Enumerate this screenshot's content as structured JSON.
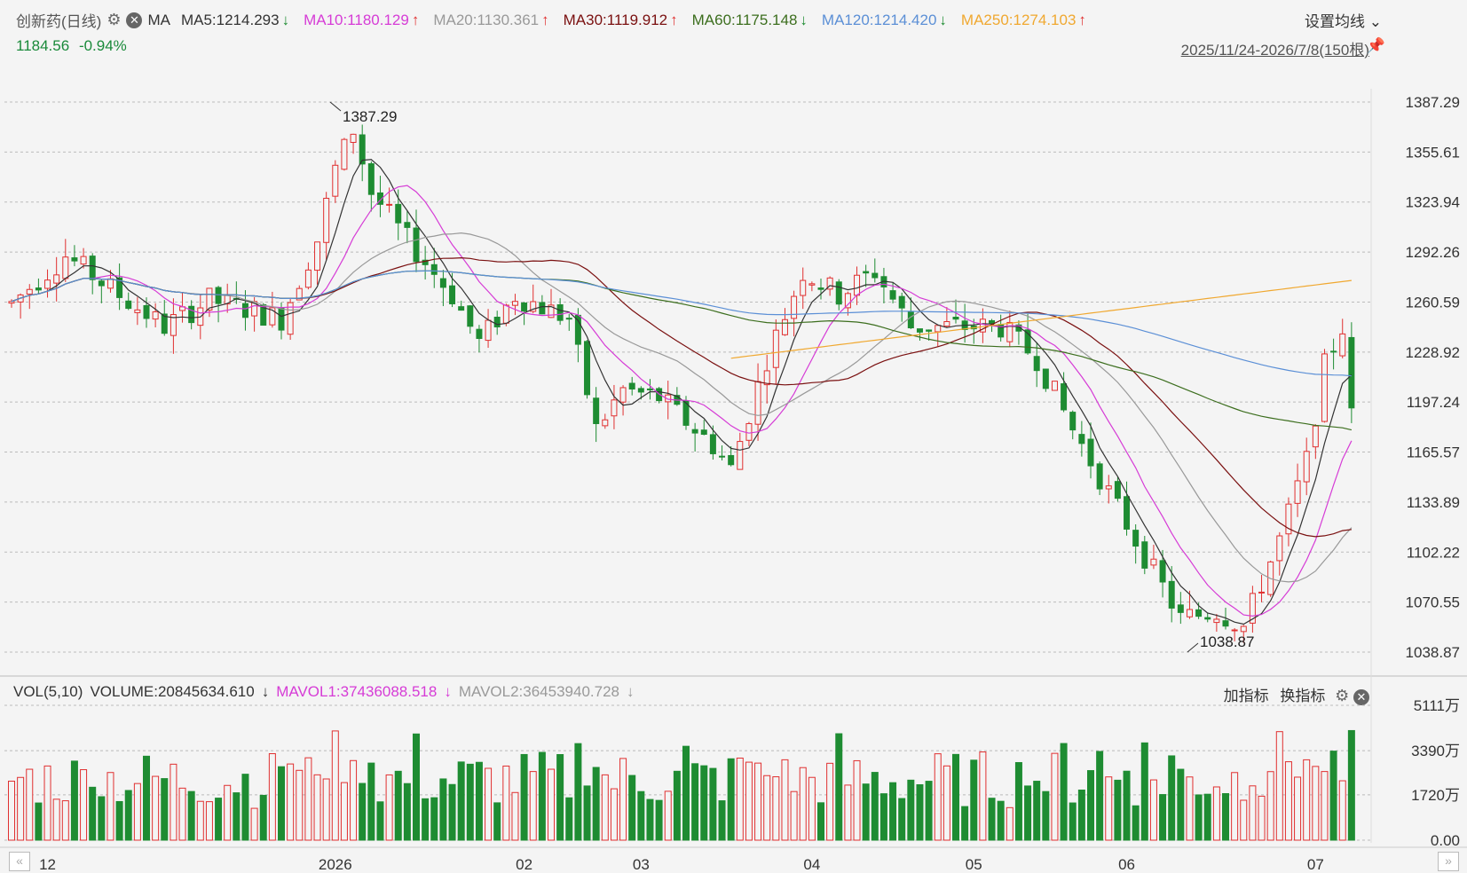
{
  "header": {
    "title": "创新药(日线)",
    "indicator": "MA",
    "ma": [
      {
        "label": "MA5:1214.293",
        "color": "#333333",
        "arrow": "↓"
      },
      {
        "label": "MA10:1180.129",
        "color": "#d63cd6",
        "arrow": "↑"
      },
      {
        "label": "MA20:1130.361",
        "color": "#999999",
        "arrow": "↑"
      },
      {
        "label": "MA30:1119.912",
        "color": "#7a1010",
        "arrow": "↑"
      },
      {
        "label": "MA60:1175.148",
        "color": "#3c6e1e",
        "arrow": "↓"
      },
      {
        "label": "MA120:1214.420",
        "color": "#5b8fd6",
        "arrow": "↓"
      },
      {
        "label": "MA250:1274.103",
        "color": "#f0a830",
        "arrow": "↑"
      }
    ],
    "price": "1184.56",
    "change": "-0.94%",
    "settings_label": "设置均线",
    "range_label": "2025/11/24-2026/7/8(150根)"
  },
  "volume_header": {
    "label": "VOL(5,10)",
    "volume": "VOLUME:20845634.610",
    "mavol1": "MAVOL1:37436088.518",
    "mavol2": "MAVOL2:36453940.728",
    "add_indicator": "加指标",
    "switch_indicator": "换指标"
  },
  "colors": {
    "up": "#e03030",
    "down": "#1e8c32",
    "grid": "#bbbbbb"
  },
  "chart_data": {
    "type": "candlestick",
    "price_axis_ticks": [
      "1387.29",
      "1355.61",
      "1323.94",
      "1292.26",
      "1260.59",
      "1228.92",
      "1197.24",
      "1165.57",
      "1133.89",
      "1102.22",
      "1070.55",
      "1038.87"
    ],
    "price_range": [
      1038.87,
      1387.29
    ],
    "annotations": [
      {
        "label": "1387.29",
        "type": "high",
        "x_category": "2026-01"
      },
      {
        "label": "1038.87",
        "type": "low",
        "x_category": "2026-06"
      }
    ],
    "x_tick_labels": [
      "12",
      "2026",
      "02",
      "03",
      "04",
      "05",
      "06",
      "07"
    ],
    "volume_axis_ticks": [
      "5111万",
      "3390万",
      "1720万",
      "0.00"
    ],
    "volume_range": [
      0,
      5111
    ],
    "volume_unit": "万",
    "candle_count": 150
  }
}
